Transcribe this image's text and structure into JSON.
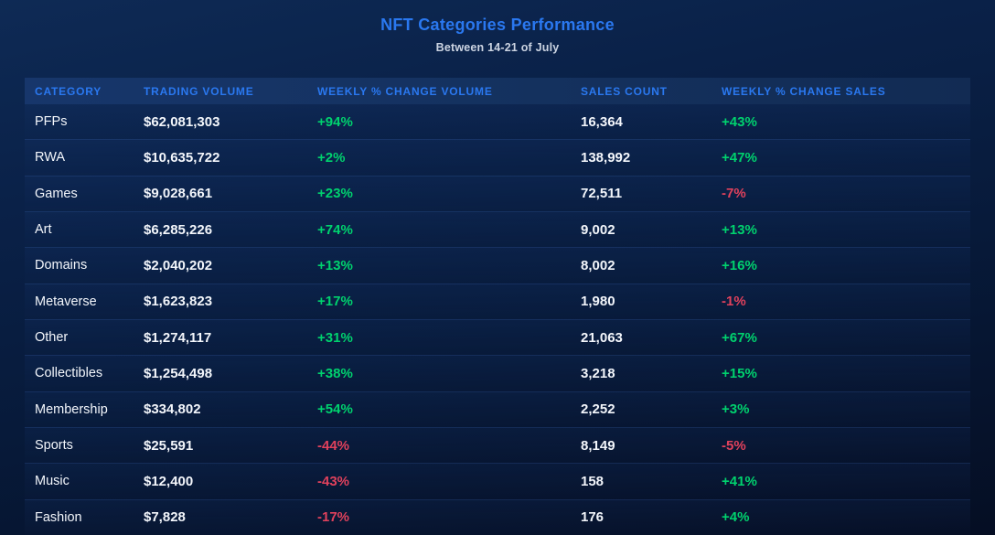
{
  "page": {
    "title": "NFT Categories Performance",
    "subtitle": "Between 14-21 of July"
  },
  "colors": {
    "accent": "#2a78f0",
    "positive": "#00d26e",
    "negative": "#e0415c"
  },
  "table": {
    "columns": [
      {
        "key": "category",
        "label": "CATEGORY"
      },
      {
        "key": "trading_volume",
        "label": "TRADING VOLUME"
      },
      {
        "key": "weekly_change_volume",
        "label": "WEEKLY % CHANGE VOLUME"
      },
      {
        "key": "sales_count",
        "label": "SALES COUNT"
      },
      {
        "key": "weekly_change_sales",
        "label": "WEEKLY % CHANGE SALES"
      }
    ],
    "rows": [
      {
        "category": "PFPs",
        "trading_volume": "$62,081,303",
        "weekly_change_volume": "+94%",
        "sales_count": "16,364",
        "weekly_change_sales": "+43%"
      },
      {
        "category": "RWA",
        "trading_volume": "$10,635,722",
        "weekly_change_volume": "+2%",
        "sales_count": "138,992",
        "weekly_change_sales": "+47%"
      },
      {
        "category": "Games",
        "trading_volume": "$9,028,661",
        "weekly_change_volume": "+23%",
        "sales_count": "72,511",
        "weekly_change_sales": "-7%"
      },
      {
        "category": "Art",
        "trading_volume": "$6,285,226",
        "weekly_change_volume": "+74%",
        "sales_count": "9,002",
        "weekly_change_sales": "+13%"
      },
      {
        "category": "Domains",
        "trading_volume": "$2,040,202",
        "weekly_change_volume": "+13%",
        "sales_count": "8,002",
        "weekly_change_sales": "+16%"
      },
      {
        "category": "Metaverse",
        "trading_volume": "$1,623,823",
        "weekly_change_volume": "+17%",
        "sales_count": "1,980",
        "weekly_change_sales": "-1%"
      },
      {
        "category": "Other",
        "trading_volume": "$1,274,117",
        "weekly_change_volume": "+31%",
        "sales_count": "21,063",
        "weekly_change_sales": "+67%"
      },
      {
        "category": "Collectibles",
        "trading_volume": "$1,254,498",
        "weekly_change_volume": "+38%",
        "sales_count": "3,218",
        "weekly_change_sales": "+15%"
      },
      {
        "category": "Membership",
        "trading_volume": "$334,802",
        "weekly_change_volume": "+54%",
        "sales_count": "2,252",
        "weekly_change_sales": "+3%"
      },
      {
        "category": "Sports",
        "trading_volume": "$25,591",
        "weekly_change_volume": "-44%",
        "sales_count": "8,149",
        "weekly_change_sales": "-5%"
      },
      {
        "category": "Music",
        "trading_volume": "$12,400",
        "weekly_change_volume": "-43%",
        "sales_count": "158",
        "weekly_change_sales": "+41%"
      },
      {
        "category": "Fashion",
        "trading_volume": "$7,828",
        "weekly_change_volume": "-17%",
        "sales_count": "176",
        "weekly_change_sales": "+4%"
      }
    ]
  },
  "chart_data": {
    "type": "table",
    "title": "NFT Categories Performance",
    "subtitle": "Between 14-21 of July",
    "columns": [
      "CATEGORY",
      "TRADING VOLUME",
      "WEEKLY % CHANGE VOLUME",
      "SALES COUNT",
      "WEEKLY % CHANGE SALES"
    ],
    "rows": [
      [
        "PFPs",
        "$62,081,303",
        "+94%",
        "16,364",
        "+43%"
      ],
      [
        "RWA",
        "$10,635,722",
        "+2%",
        "138,992",
        "+47%"
      ],
      [
        "Games",
        "$9,028,661",
        "+23%",
        "72,511",
        "-7%"
      ],
      [
        "Art",
        "$6,285,226",
        "+74%",
        "9,002",
        "+13%"
      ],
      [
        "Domains",
        "$2,040,202",
        "+13%",
        "8,002",
        "+16%"
      ],
      [
        "Metaverse",
        "$1,623,823",
        "+17%",
        "1,980",
        "-1%"
      ],
      [
        "Other",
        "$1,274,117",
        "+31%",
        "21,063",
        "+67%"
      ],
      [
        "Collectibles",
        "$1,254,498",
        "+38%",
        "3,218",
        "+15%"
      ],
      [
        "Membership",
        "$334,802",
        "+54%",
        "2,252",
        "+3%"
      ],
      [
        "Sports",
        "$25,591",
        "-44%",
        "8,149",
        "-5%"
      ],
      [
        "Music",
        "$12,400",
        "-43%",
        "158",
        "+41%"
      ],
      [
        "Fashion",
        "$7,828",
        "-17%",
        "176",
        "+4%"
      ]
    ]
  }
}
